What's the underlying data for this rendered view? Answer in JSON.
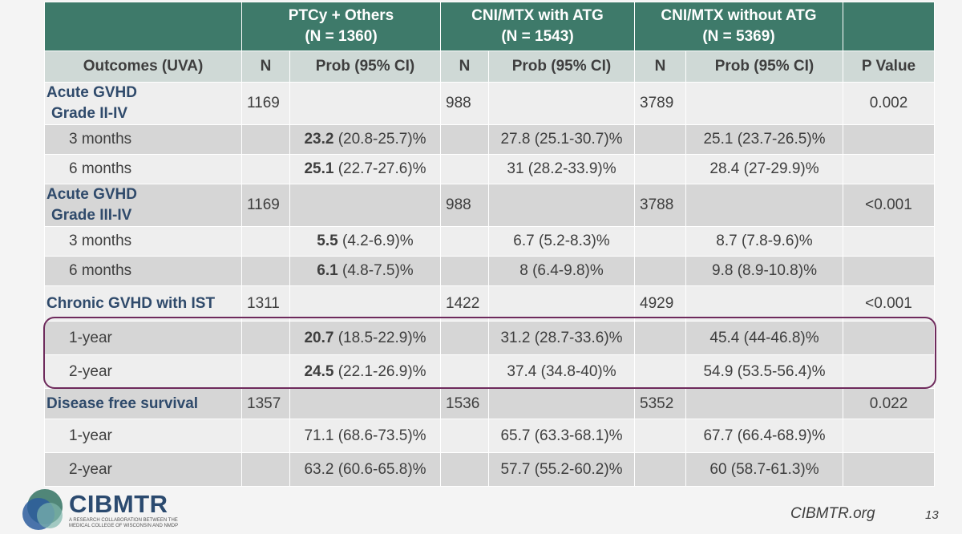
{
  "table": {
    "groups": [
      {
        "line1": "PTCy + Others",
        "line2": "(N = 1360)"
      },
      {
        "line1": "CNI/MTX with ATG",
        "line2": "(N = 1543)"
      },
      {
        "line1": "CNI/MTX without ATG",
        "line2": "(N = 5369)"
      }
    ],
    "subheader": {
      "outcomes": "Outcomes (UVA)",
      "n": "N",
      "prob": "Prob (95% CI)",
      "pvalue": "P Value"
    },
    "sections": [
      {
        "label1": "Acute GVHD",
        "label2": "Grade II-IV",
        "n1": "1169",
        "n2": "988",
        "n3": "3789",
        "p": "0.002",
        "rows": [
          {
            "label": "3 months",
            "b1": "23.2",
            "r1": " (20.8-25.7)%",
            "v2": "27.8 (25.1-30.7)%",
            "v3": "25.1 (23.7-26.5)%"
          },
          {
            "label": "6 months",
            "b1": "25.1",
            "r1": " (22.7-27.6)%",
            "v2": "31 (28.2-33.9)%",
            "v3": "28.4 (27-29.9)%"
          }
        ]
      },
      {
        "label1": "Acute GVHD",
        "label2": "Grade III-IV",
        "n1": "1169",
        "n2": "988",
        "n3": "3788",
        "p": "<0.001",
        "rows": [
          {
            "label": "3 months",
            "b1": "5.5",
            "r1": " (4.2-6.9)%",
            "v2": "6.7 (5.2-8.3)%",
            "v3": "8.7 (7.8-9.6)%"
          },
          {
            "label": "6 months",
            "b1": "6.1",
            "r1": " (4.8-7.5)%",
            "v2": "8 (6.4-9.8)%",
            "v3": "9.8 (8.9-10.8)%"
          }
        ]
      },
      {
        "label1": "Chronic GVHD with IST",
        "n1": "1311",
        "n2": "1422",
        "n3": "4929",
        "p": "<0.001",
        "rows": [
          {
            "label": "1-year",
            "b1": "20.7",
            "r1": " (18.5-22.9)%",
            "v2": "31.2 (28.7-33.6)%",
            "v3": "45.4 (44-46.8)%"
          },
          {
            "label": "2-year",
            "b1": "24.5",
            "r1": " (22.1-26.9)%",
            "v2": "37.4 (34.8-40)%",
            "v3": "54.9 (53.5-56.4)%"
          }
        ]
      },
      {
        "label1": "Disease free survival",
        "n1": "1357",
        "n2": "1536",
        "n3": "5352",
        "p": "0.022",
        "rows": [
          {
            "label": "1-year",
            "v1": "71.1 (68.6-73.5)%",
            "v2": "65.7 (63.3-68.1)%",
            "v3": "67.7 (66.4-68.9)%"
          },
          {
            "label": "2-year",
            "v1": "63.2 (60.6-65.8)%",
            "v2": "57.7 (55.2-60.2)%",
            "v3": "60 (58.7-61.3)%"
          }
        ]
      }
    ]
  },
  "footer": {
    "logo_name": "CIBMTR",
    "logo_tagline": "A research collaboration between the Medical College of Wisconsin and NMDP",
    "url": "CIBMTR.org",
    "page_number": "13"
  },
  "colors": {
    "header_bg": "#3e7a6a",
    "subheader_bg": "#cfd9d6",
    "row_light": "#eeeeee",
    "row_dark": "#d6d6d6",
    "label_text": "#2f4a6b",
    "highlight_border": "#6e2a5c"
  }
}
